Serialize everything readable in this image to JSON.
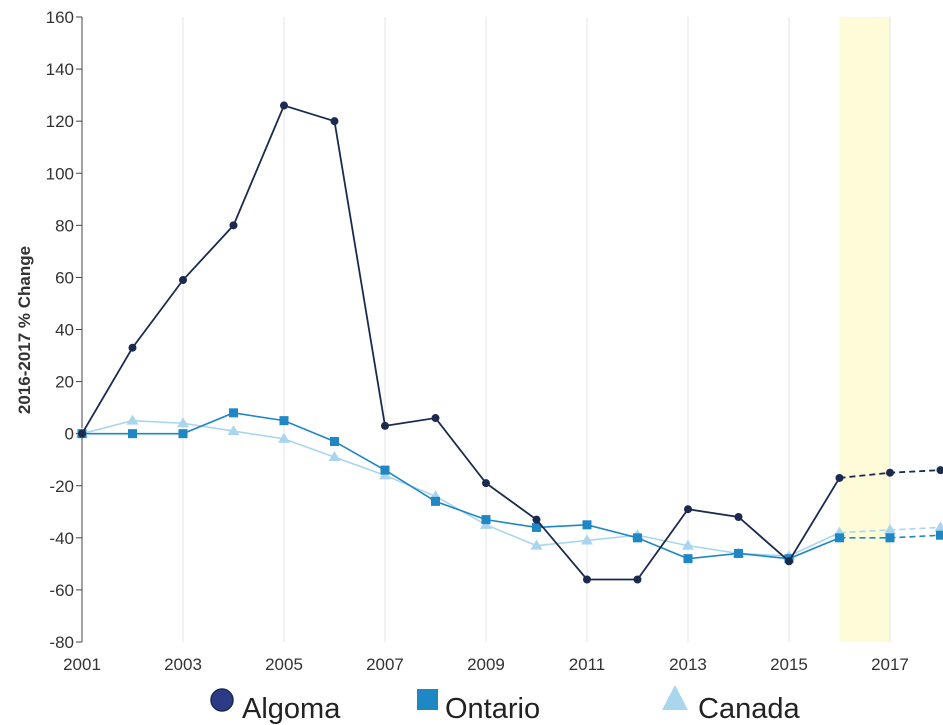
{
  "chart_data": {
    "type": "line",
    "ylabel": "2016-2017 % Change",
    "xlabel": "",
    "title": "",
    "x": [
      2001,
      2002,
      2003,
      2004,
      2005,
      2006,
      2007,
      2008,
      2009,
      2010,
      2011,
      2012,
      2013,
      2014,
      2015,
      2016,
      2017,
      2018
    ],
    "x_tick_labels": [
      "2001",
      "2003",
      "2005",
      "2007",
      "2009",
      "2011",
      "2013",
      "2015",
      "2017"
    ],
    "y_tick_labels": [
      "160",
      "140",
      "120",
      "100",
      "80",
      "60",
      "40",
      "20",
      "0",
      "-20",
      "-40",
      "-60",
      "-80"
    ],
    "xlim": [
      2001,
      2018.05
    ],
    "ylim": [
      -80,
      160
    ],
    "grid": "vertical",
    "highlight_band": [
      2016,
      2017
    ],
    "highlight_color": "#fdfbd8",
    "projected_from": 2016,
    "legend_placement": "bottom-center",
    "series": [
      {
        "name": "Algoma",
        "color": "#1b2a4e",
        "marker": "circle",
        "values": [
          0,
          33,
          59,
          80,
          126,
          120,
          3,
          6,
          -19,
          -33,
          -56,
          -56,
          -29,
          -32,
          -49,
          -17,
          -15,
          -14
        ]
      },
      {
        "name": "Ontario",
        "color": "#1e87c4",
        "marker": "square",
        "values": [
          0,
          0,
          0,
          8,
          5,
          -3,
          -14,
          -26,
          -33,
          -36,
          -35,
          -40,
          -48,
          -46,
          -48,
          -40,
          -40,
          -39
        ]
      },
      {
        "name": "Canada",
        "color": "#a9d5ef",
        "marker": "triangle",
        "values": [
          0,
          5,
          4,
          1,
          -2,
          -9,
          -16,
          -24,
          -35,
          -43,
          -41,
          -39,
          -43,
          -46,
          -47,
          -38,
          -37,
          -36
        ]
      }
    ]
  }
}
